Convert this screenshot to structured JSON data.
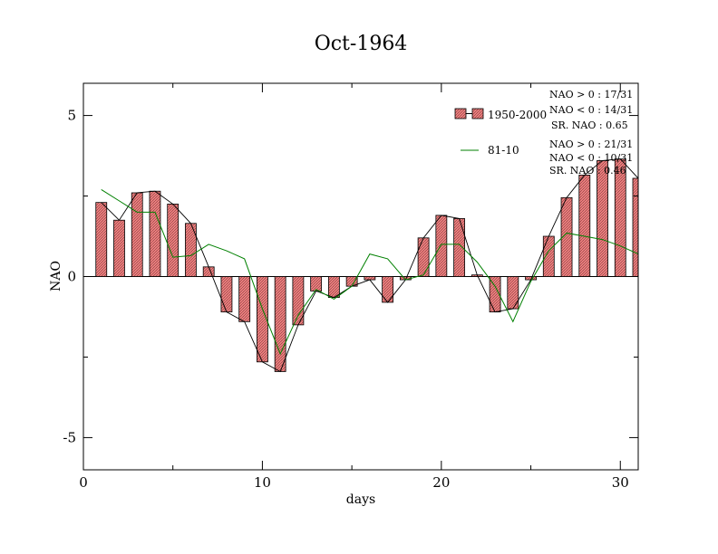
{
  "chart_data": {
    "type": "bar",
    "title": "Oct-1964",
    "xlabel": "days",
    "ylabel": "NAO",
    "xlim": [
      0,
      31
    ],
    "ylim": [
      -6,
      6
    ],
    "x_ticks": [
      0,
      10,
      20,
      30
    ],
    "x_tick_labels": [
      "0",
      "10",
      "20",
      "30"
    ],
    "y_ticks": [
      -5,
      0,
      5
    ],
    "y_tick_labels": [
      "-5",
      "0",
      "5"
    ],
    "days": [
      1,
      2,
      3,
      4,
      5,
      6,
      7,
      8,
      9,
      10,
      11,
      12,
      13,
      14,
      15,
      16,
      17,
      18,
      19,
      20,
      21,
      22,
      23,
      24,
      25,
      26,
      27,
      28,
      29,
      30,
      31
    ],
    "series": [
      {
        "name": "1950-2000",
        "kind": "bar",
        "fill": "#f08080",
        "values": [
          2.3,
          1.75,
          2.6,
          2.65,
          2.25,
          1.65,
          0.3,
          -1.1,
          -1.4,
          -2.65,
          -2.95,
          -1.5,
          -0.45,
          -0.65,
          -0.3,
          -0.1,
          -0.8,
          -0.1,
          1.2,
          1.9,
          1.8,
          0.05,
          -1.1,
          -1.0,
          -0.1,
          1.25,
          2.45,
          3.15,
          3.6,
          3.65,
          3.05
        ]
      },
      {
        "name": "81-10",
        "kind": "line",
        "color": "#008000",
        "values": [
          2.7,
          2.35,
          2.0,
          2.0,
          0.6,
          0.65,
          1.0,
          0.8,
          0.55,
          -1.0,
          -2.4,
          -1.2,
          -0.4,
          -0.7,
          -0.3,
          0.7,
          0.55,
          -0.1,
          0.05,
          1.0,
          1.0,
          0.45,
          -0.3,
          -1.4,
          -0.15,
          0.8,
          1.35,
          1.25,
          1.15,
          0.95,
          0.7
        ]
      }
    ],
    "annotations": {
      "group1": [
        "NAO > 0 : 17/31",
        "NAO < 0 : 14/31",
        "SR. NAO : 0.65"
      ],
      "group2": [
        "NAO > 0 : 21/31",
        "NAO < 0 : 10/31",
        "SR. NAO : 0.46"
      ]
    },
    "legend_position": "top-right",
    "grid": false
  }
}
